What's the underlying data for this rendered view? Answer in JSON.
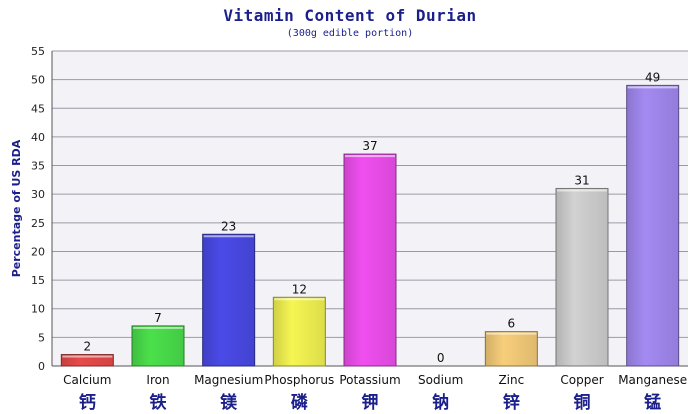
{
  "chart_data": {
    "type": "bar",
    "title": "Vitamin Content of Durian",
    "subtitle": "(300g edible portion)",
    "ylabel": "Percentage of US RDA",
    "xlabel": "",
    "ylim": [
      0,
      55
    ],
    "yticks": [
      0,
      5,
      10,
      15,
      20,
      25,
      30,
      35,
      40,
      45,
      50,
      55
    ],
    "grid": true,
    "categories": [
      "Calcium",
      "Iron",
      "Magnesium",
      "Phosphorus",
      "Potassium",
      "Sodium",
      "Zinc",
      "Copper",
      "Manganese"
    ],
    "categories_zh": [
      "钙",
      "铁",
      "镁",
      "磷",
      "钾",
      "钠",
      "锌",
      "铜",
      "锰"
    ],
    "values": [
      2,
      7,
      23,
      12,
      37,
      0,
      6,
      31,
      49
    ],
    "colors": [
      "#e84a4a",
      "#4be04b",
      "#4a4ae8",
      "#f5f552",
      "#f04ff0",
      "#8a8a8a",
      "#f7ce7a",
      "#d2d2d2",
      "#a38af2"
    ]
  }
}
